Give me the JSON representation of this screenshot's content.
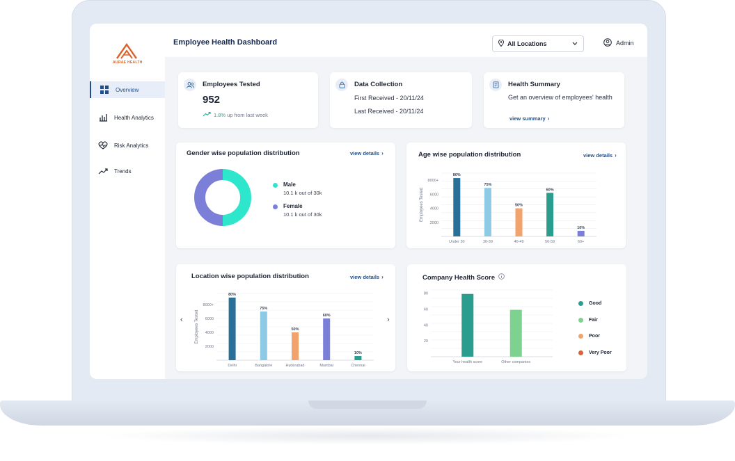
{
  "brand": {
    "logo_text": "AURAE HEALTH",
    "accent": "#d9642b"
  },
  "sidebar": {
    "items": [
      {
        "label": "Overview",
        "icon": "grid-icon",
        "active": true
      },
      {
        "label": "Health Analytics",
        "icon": "bar-chart-icon",
        "active": false
      },
      {
        "label": "Risk Analytics",
        "icon": "heartbeat-icon",
        "active": false
      },
      {
        "label": "Trends",
        "icon": "trend-up-icon",
        "active": false
      }
    ]
  },
  "header": {
    "title": "Employee Health Dashboard",
    "location_select": {
      "selected": "All Locations",
      "icon": "location-pin-icon"
    },
    "user": {
      "name": "Admin",
      "icon": "user-icon"
    }
  },
  "stats": {
    "employees_tested": {
      "title": "Employees Tested",
      "value": "952",
      "change_pct": "1.8%",
      "change_text": "up from last week"
    },
    "data_collection": {
      "title": "Data Collection",
      "first_received": "First Received - 20/11/24",
      "last_received": "Last Received - 20/11/24"
    },
    "health_summary": {
      "title": "Health Summary",
      "text": "Get an overview of employees' health",
      "link": "view summary"
    }
  },
  "gender_card": {
    "title": "Gender wise population distribution",
    "link": "view details",
    "legend": [
      {
        "name": "Male",
        "sub": "10.1 k out of 30k",
        "color": "#2ee6cc"
      },
      {
        "name": "Female",
        "sub": "10.1 k out of 30k",
        "color": "#7b7fd8"
      }
    ]
  },
  "age_card": {
    "title": "Age wise population distribution",
    "link": "view details"
  },
  "location_card": {
    "title": "Location wise population distribution",
    "link": "view details"
  },
  "health_score_card": {
    "title": "Company Health Score",
    "legend": [
      {
        "name": "Good",
        "color": "#2a9d8f"
      },
      {
        "name": "Fair",
        "color": "#7ed28f"
      },
      {
        "name": "Poor",
        "color": "#f2a36b"
      },
      {
        "name": "Very Poor",
        "color": "#d9643a"
      }
    ]
  },
  "chart_data": [
    {
      "type": "pie",
      "title": "Gender wise population distribution",
      "categories": [
        "Male",
        "Female"
      ],
      "values": [
        50,
        50
      ],
      "donut": true,
      "colors": [
        "#2ee6cc",
        "#7b7fd8"
      ]
    },
    {
      "type": "bar",
      "title": "Age wise population distribution",
      "ylabel": "Employees Tested",
      "categories": [
        "Under 30",
        "30-39",
        "40-49",
        "50-59",
        "60+"
      ],
      "values": [
        8300,
        6900,
        4000,
        6200,
        800
      ],
      "data_labels": [
        "80%",
        "75%",
        "50%",
        "60%",
        "10%"
      ],
      "colors": [
        "#2a6f97",
        "#8ecae6",
        "#f2a36b",
        "#2a9d8f",
        "#7b7fd8"
      ],
      "ytick_labels": [
        "2000",
        "4000",
        "6000",
        "8000+"
      ],
      "ylim": [
        0,
        9000
      ],
      "grid": true
    },
    {
      "type": "bar",
      "title": "Location wise population distribution",
      "ylabel": "Employees Tested",
      "categories": [
        "Delhi",
        "Bangalore",
        "Hyderabad",
        "Mumbai",
        "Chennai"
      ],
      "values": [
        9000,
        7000,
        4000,
        6000,
        600
      ],
      "data_labels": [
        "80%",
        "75%",
        "50%",
        "60%",
        "10%"
      ],
      "colors": [
        "#2a6f97",
        "#8ecae6",
        "#f2a36b",
        "#7b7fd8",
        "#2a9d8f"
      ],
      "ytick_labels": [
        "2000",
        "4000",
        "6000",
        "8000+"
      ],
      "ylim": [
        0,
        9600
      ],
      "grid": true
    },
    {
      "type": "bar",
      "title": "Company Health Score",
      "categories": [
        "Your health score",
        "Other companies"
      ],
      "values": [
        79,
        59
      ],
      "colors": [
        "#2a9d8f",
        "#7ed28f"
      ],
      "yticks": [
        20,
        40,
        60,
        80
      ],
      "ylim": [
        0,
        84
      ],
      "grid": true
    }
  ]
}
